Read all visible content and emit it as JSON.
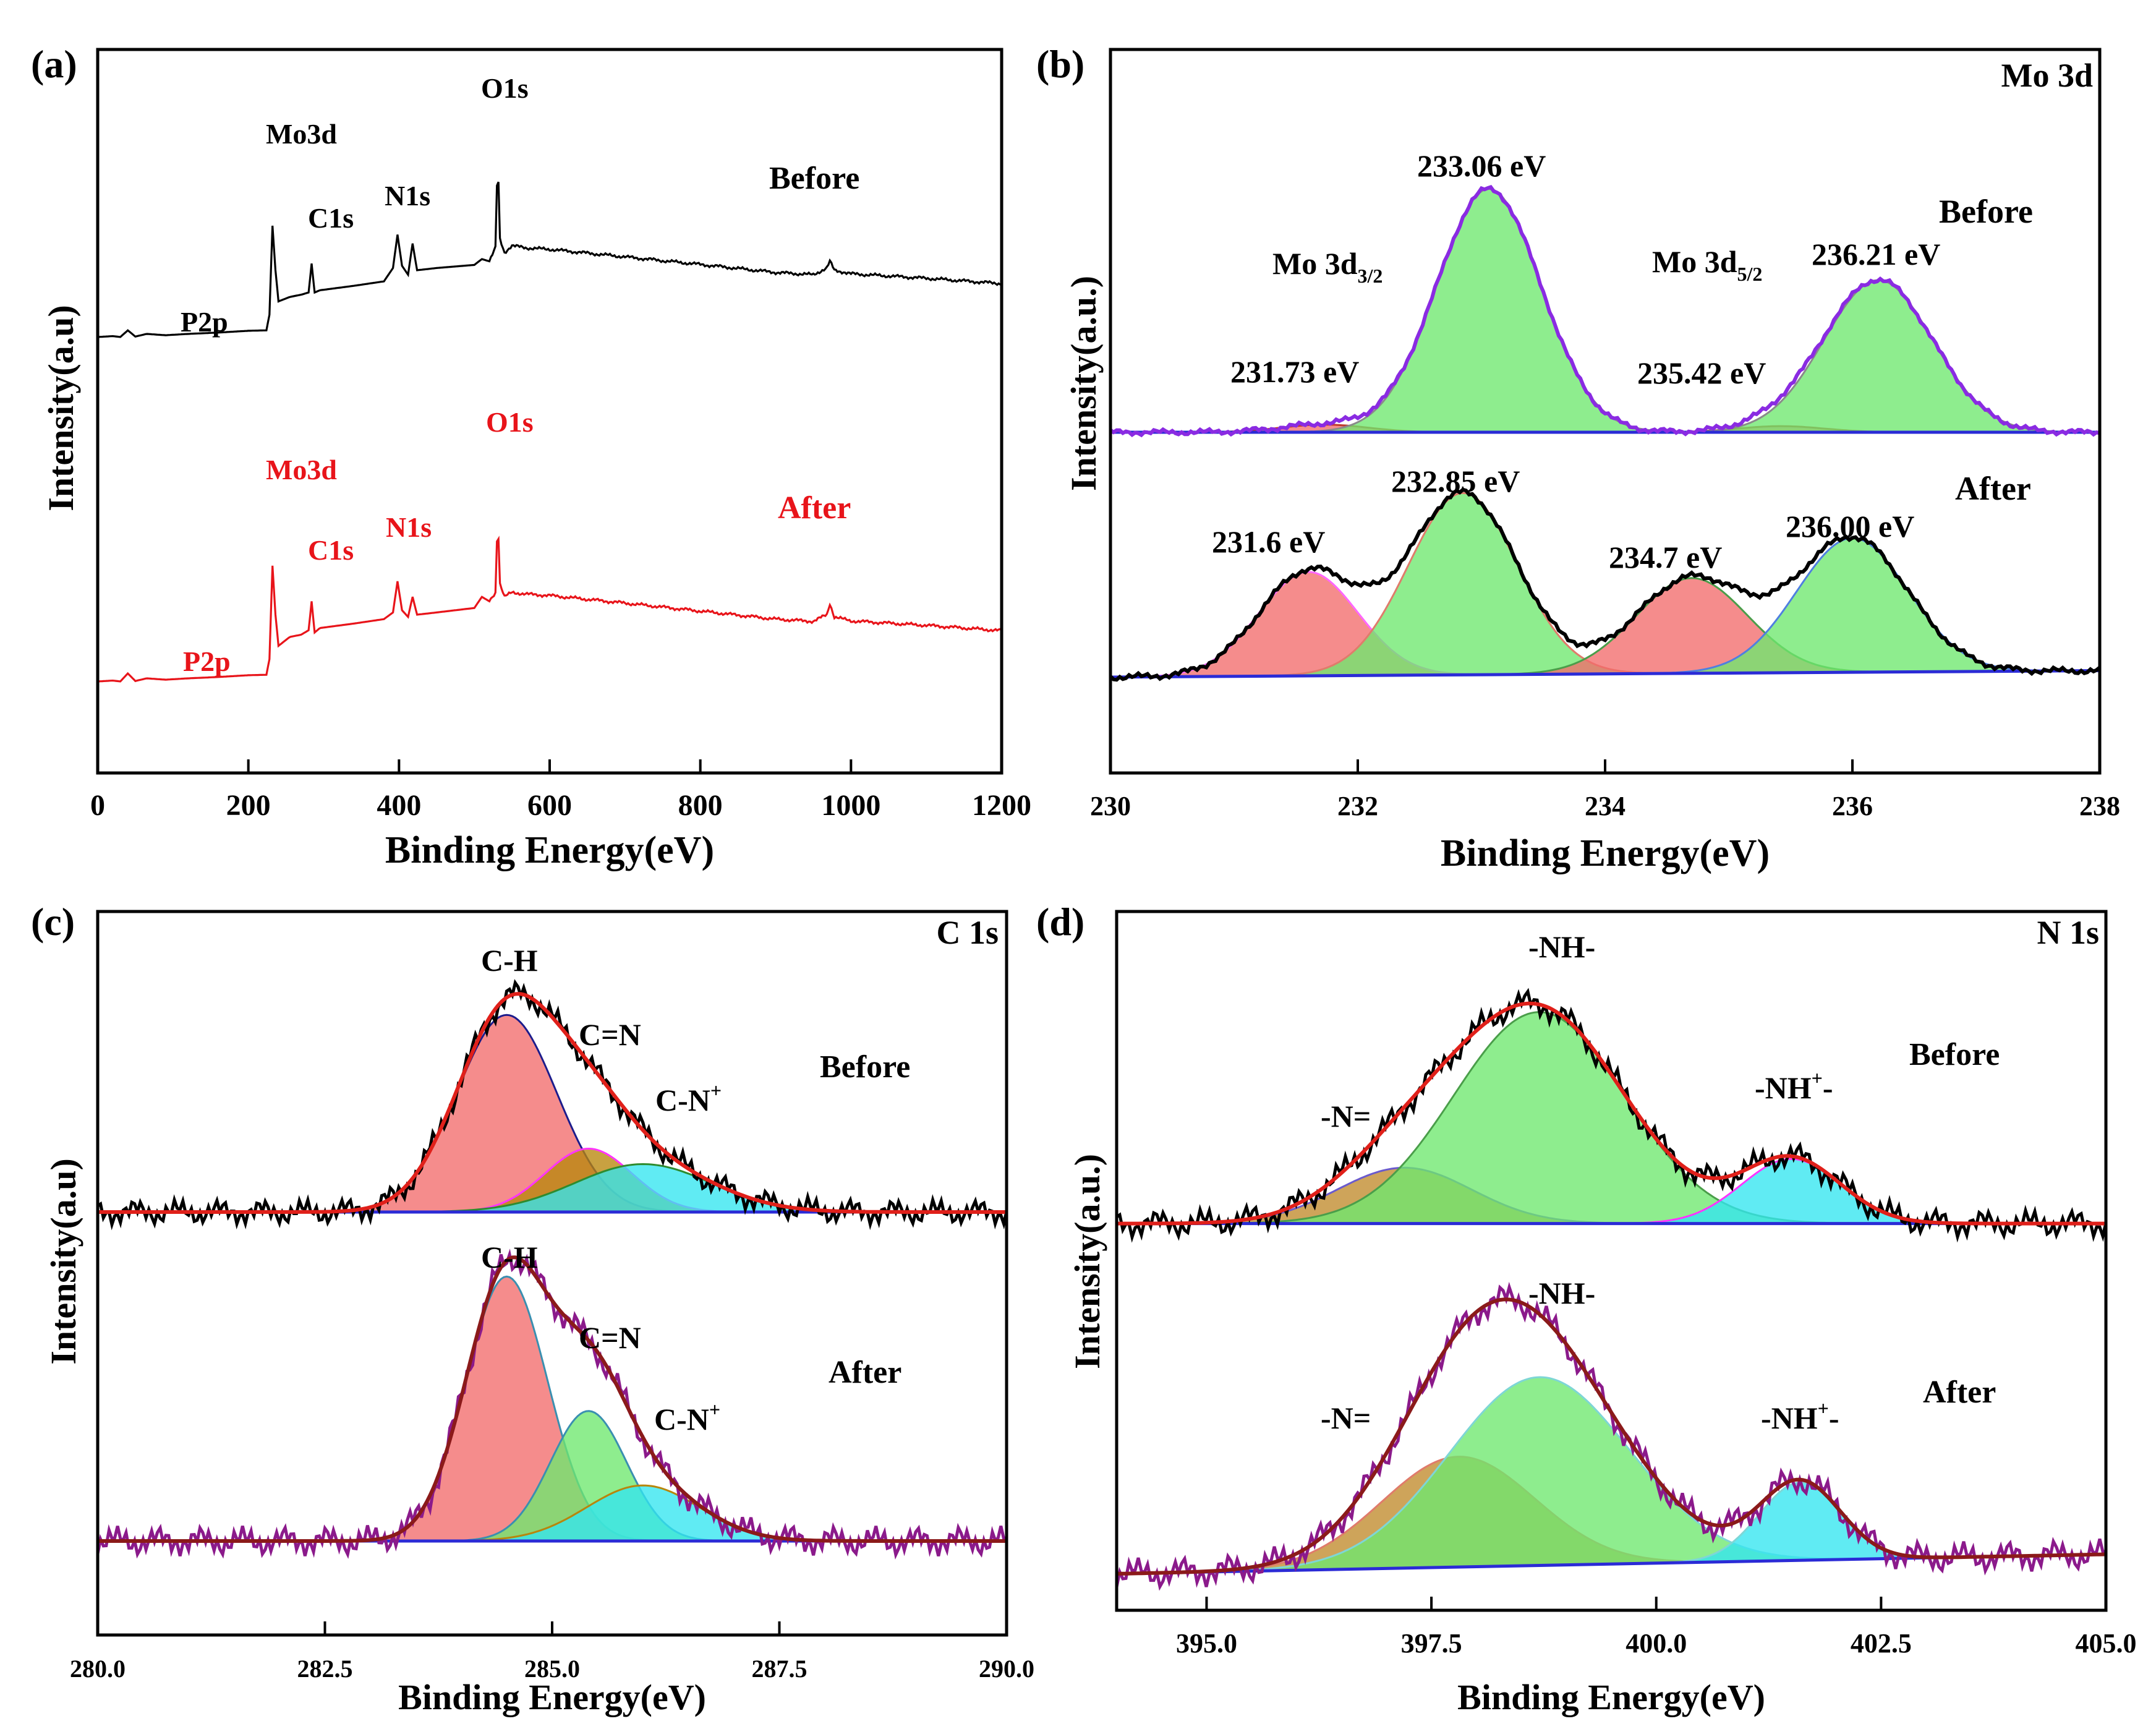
{
  "chart_data": [
    {
      "panel": "(a)",
      "type": "line",
      "title": "",
      "xlabel": "Binding Energy(eV)",
      "ylabel": "Intensity(a.u)",
      "xlim": [
        0,
        1200
      ],
      "xticks": [
        "0",
        "200",
        "400",
        "600",
        "800",
        "1000",
        "1200"
      ],
      "grid": false,
      "series": [
        {
          "name": "Before",
          "color": "#000000",
          "x": [
            0,
            20,
            30,
            40,
            50,
            65,
            90,
            120,
            160,
            200,
            224,
            228,
            232,
            236,
            240,
            255,
            270,
            280,
            284,
            288,
            295,
            340,
            380,
            392,
            398,
            404,
            412,
            418,
            424,
            450,
            500,
            510,
            520,
            528,
            531,
            534,
            540,
            550,
            570,
            600,
            700,
            800,
            900,
            950,
            968,
            972,
            978,
            990,
            1000,
            1100,
            1200
          ],
          "y": [
            100,
            102,
            100,
            115,
            101,
            107,
            104,
            107,
            110,
            114,
            115,
            150,
            350,
            250,
            180,
            190,
            195,
            200,
            265,
            200,
            205,
            215,
            225,
            255,
            330,
            260,
            240,
            310,
            250,
            255,
            262,
            275,
            270,
            300,
            510,
            320,
            290,
            305,
            300,
            297,
            280,
            263,
            245,
            240,
            255,
            270,
            250,
            246,
            242,
            232,
            220
          ]
        },
        {
          "name": "After",
          "color": "#e8141a",
          "x": [
            0,
            20,
            30,
            40,
            50,
            65,
            90,
            120,
            160,
            200,
            224,
            228,
            232,
            236,
            240,
            255,
            270,
            280,
            284,
            288,
            295,
            340,
            380,
            392,
            398,
            404,
            412,
            418,
            424,
            450,
            500,
            510,
            520,
            528,
            531,
            534,
            540,
            550,
            570,
            600,
            700,
            800,
            900,
            950,
            968,
            972,
            978,
            990,
            1000,
            1100,
            1200
          ],
          "y": [
            100,
            102,
            100,
            118,
            101,
            107,
            104,
            107,
            110,
            114,
            115,
            150,
            360,
            250,
            180,
            200,
            205,
            215,
            280,
            210,
            220,
            230,
            240,
            255,
            325,
            260,
            245,
            290,
            250,
            255,
            265,
            290,
            280,
            300,
            475,
            320,
            290,
            300,
            296,
            293,
            276,
            258,
            240,
            235,
            250,
            275,
            245,
            240,
            236,
            226,
            214
          ]
        }
      ],
      "peak_labels": [
        {
          "text": "P2p",
          "x": 140,
          "series": "Before"
        },
        {
          "text": "Mo3d",
          "x": 232,
          "series": "Before"
        },
        {
          "text": "C1s",
          "x": 285,
          "series": "Before"
        },
        {
          "text": "N1s",
          "x": 400,
          "series": "Before"
        },
        {
          "text": "O1s",
          "x": 531,
          "series": "Before"
        },
        {
          "text": "P2p",
          "x": 140,
          "series": "After"
        },
        {
          "text": "Mo3d",
          "x": 232,
          "series": "After"
        },
        {
          "text": "C1s",
          "x": 285,
          "series": "After"
        },
        {
          "text": "N1s",
          "x": 400,
          "series": "After"
        },
        {
          "text": "O1s",
          "x": 531,
          "series": "After"
        }
      ],
      "annotations": [
        {
          "text": "Before",
          "color": "#000000"
        },
        {
          "text": "After",
          "color": "#e8141a"
        }
      ]
    },
    {
      "panel": "(b)",
      "type": "area",
      "title": "Mo 3d",
      "xlabel": "Binding Energy(eV)",
      "ylabel": "Intensity(a.u.)",
      "xlim": [
        230,
        238
      ],
      "xticks": [
        "230",
        "232",
        "234",
        "236",
        "238"
      ],
      "grid": false,
      "spectra": [
        {
          "name": "Before",
          "baseline": [
            1.0,
            1.0
          ],
          "components": [
            {
              "center": 231.73,
              "height": 0.1,
              "sigma": 0.35,
              "fill": "#f26b6b",
              "edge": "#c0392b"
            },
            {
              "center": 233.06,
              "height": 3.2,
              "sigma": 0.42,
              "fill": "#6ee86e",
              "edge": "#8a8a8a"
            },
            {
              "center": 235.42,
              "height": 0.08,
              "sigma": 0.35,
              "fill": "#f26b6b",
              "edge": "#c0392b"
            },
            {
              "center": 236.21,
              "height": 2.0,
              "sigma": 0.44,
              "fill": "#6ee86e",
              "edge": "#8a8a8a"
            }
          ],
          "envelope_color": "#8a2be2"
        },
        {
          "name": "After",
          "baseline": [
            0.0,
            0.25
          ],
          "components": [
            {
              "center": 231.6,
              "height": 1.2,
              "sigma": 0.4,
              "fill": "#f26b6b",
              "edge": "#ff66ff"
            },
            {
              "center": 232.85,
              "height": 2.1,
              "sigma": 0.44,
              "fill": "#6ee86e",
              "edge": "#e07b6b"
            },
            {
              "center": 234.7,
              "height": 1.1,
              "sigma": 0.45,
              "fill": "#f26b6b",
              "edge": "#4a9e4a"
            },
            {
              "center": 236.0,
              "height": 1.55,
              "sigma": 0.45,
              "fill": "#6ee86e",
              "edge": "#4f7fe0"
            }
          ],
          "envelope_color": "#000000"
        }
      ],
      "labels": [
        {
          "text": "233.06 eV"
        },
        {
          "text": "Mo 3d",
          "sub": "3/2"
        },
        {
          "text": "Mo 3d",
          "sub": "5/2"
        },
        {
          "text": "236.21 eV"
        },
        {
          "text": "231.73 eV"
        },
        {
          "text": "235.42 eV"
        },
        {
          "text": "232.85 eV"
        },
        {
          "text": "231.6 eV"
        },
        {
          "text": "234.7 eV"
        },
        {
          "text": "236.00 eV"
        },
        {
          "text": "Before"
        },
        {
          "text": "After"
        }
      ]
    },
    {
      "panel": "(c)",
      "type": "area",
      "title": "C 1s",
      "xlabel": "Binding Energy(eV)",
      "ylabel": "Intensity(a.u)",
      "xlim": [
        280.0,
        290.0
      ],
      "xticks": [
        "280.0",
        "282.5",
        "285.0",
        "287.5",
        "290.0"
      ],
      "grid": false,
      "spectra": [
        {
          "name": "Before",
          "baseline": [
            1.0,
            1.0
          ],
          "components": [
            {
              "center": 284.5,
              "height": 2.55,
              "sigma": 0.55,
              "fill": "#f26b6b",
              "edge": "#1c1c8c"
            },
            {
              "center": 285.4,
              "height": 0.82,
              "sigma": 0.48,
              "fill": "#b8860b",
              "edge": "#ff33ff"
            },
            {
              "center": 286.0,
              "height": 0.62,
              "sigma": 0.75,
              "fill": "#33e5f0",
              "edge": "#2e8b2e"
            }
          ],
          "envelope_color": "#e0201a",
          "raw_color": "#000000"
        },
        {
          "name": "After",
          "baseline": [
            0.0,
            0.0
          ],
          "components": [
            {
              "center": 284.5,
              "height": 2.95,
              "sigma": 0.45,
              "fill": "#f26b6b",
              "edge": "#3a8fb0"
            },
            {
              "center": 285.4,
              "height": 1.45,
              "sigma": 0.42,
              "fill": "#6ee86e",
              "edge": "#3a8fb0"
            },
            {
              "center": 286.0,
              "height": 0.62,
              "sigma": 0.62,
              "fill": "#33e5f0",
              "edge": "#b8860b"
            }
          ],
          "envelope_color": "#8b1a1a",
          "raw_color": "#8b1a8b"
        }
      ],
      "labels": [
        {
          "text": "C-H"
        },
        {
          "text": "C=N"
        },
        {
          "text": "C-N",
          "sup": "+"
        },
        {
          "text": "Before"
        },
        {
          "text": "C-H"
        },
        {
          "text": "C=N"
        },
        {
          "text": "C-N",
          "sup": "+"
        },
        {
          "text": "After"
        }
      ]
    },
    {
      "panel": "(d)",
      "type": "area",
      "title": "N 1s",
      "xlabel": "Binding Energy(eV)",
      "ylabel": "Intensity(a.u.)",
      "xlim": [
        394.0,
        405.0
      ],
      "xticks": [
        "395.0",
        "397.5",
        "400.0",
        "402.5",
        "405.0"
      ],
      "grid": false,
      "spectra": [
        {
          "name": "Before",
          "baseline": [
            1.0,
            1.0
          ],
          "components": [
            {
              "center": 397.2,
              "height": 0.95,
              "sigma": 0.75,
              "fill": "#c08a2b",
              "edge": "#6a5acd"
            },
            {
              "center": 398.7,
              "height": 3.6,
              "sigma": 0.95,
              "fill": "#6ee86e",
              "edge": "#4a9e4a"
            },
            {
              "center": 401.5,
              "height": 1.1,
              "sigma": 0.55,
              "fill": "#33e5f0",
              "edge": "#ff33ff"
            }
          ],
          "envelope_color": "#e0201a",
          "raw_color": "#000000"
        },
        {
          "name": "After",
          "baseline": [
            0.0,
            0.6
          ],
          "components": [
            {
              "center": 397.8,
              "height": 1.7,
              "sigma": 0.85,
              "fill": "#c08a2b",
              "edge": "#e07b6b"
            },
            {
              "center": 398.7,
              "height": 2.9,
              "sigma": 1.0,
              "fill": "#6ee86e",
              "edge": "#7ed6d6"
            },
            {
              "center": 401.6,
              "height": 1.2,
              "sigma": 0.45,
              "fill": "#33e5f0",
              "edge": "#7ed6d6"
            }
          ],
          "envelope_color": "#8b1a1a",
          "raw_color": "#8b1a8b"
        }
      ],
      "labels": [
        {
          "text": "-NH-"
        },
        {
          "text": "-N="
        },
        {
          "text": "-NH",
          "sup": "+",
          "tail": "-"
        },
        {
          "text": "Before"
        },
        {
          "text": "-NH-"
        },
        {
          "text": "-N="
        },
        {
          "text": "-NH",
          "sup": "+",
          "tail": "-"
        },
        {
          "text": "After"
        }
      ]
    }
  ]
}
